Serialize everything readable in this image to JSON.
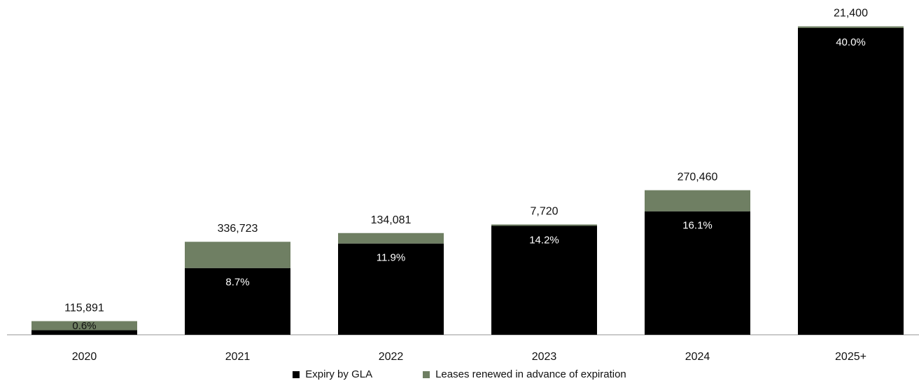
{
  "chart_data": {
    "type": "bar",
    "stacked": true,
    "categories": [
      "2020",
      "2021",
      "2022",
      "2023",
      "2024",
      "2025+"
    ],
    "series": [
      {
        "name": "Expiry by GLA",
        "color": "#000000",
        "values": [
          0.6,
          8.7,
          11.9,
          14.2,
          16.1,
          40.0
        ],
        "labels": [
          "0.6%",
          "8.7%",
          "11.9%",
          "14.2%",
          "16.1%",
          "40.0%"
        ]
      },
      {
        "name": "Leases renewed in advance of expiration",
        "color": "#6f7f63",
        "values": [
          115891,
          336723,
          134081,
          7720,
          270460,
          21400
        ],
        "labels": [
          "115,891",
          "336,723",
          "134,081",
          "7,720",
          "270,460",
          "21,400"
        ]
      }
    ],
    "title": "",
    "xlabel": "",
    "ylabel": "",
    "grid": false,
    "legend": "bottom-center"
  },
  "legend": {
    "items": [
      {
        "label": "Expiry by GLA",
        "color": "#000000"
      },
      {
        "label": "Leases renewed in advance of expiration",
        "color": "#6f7f63"
      }
    ]
  }
}
